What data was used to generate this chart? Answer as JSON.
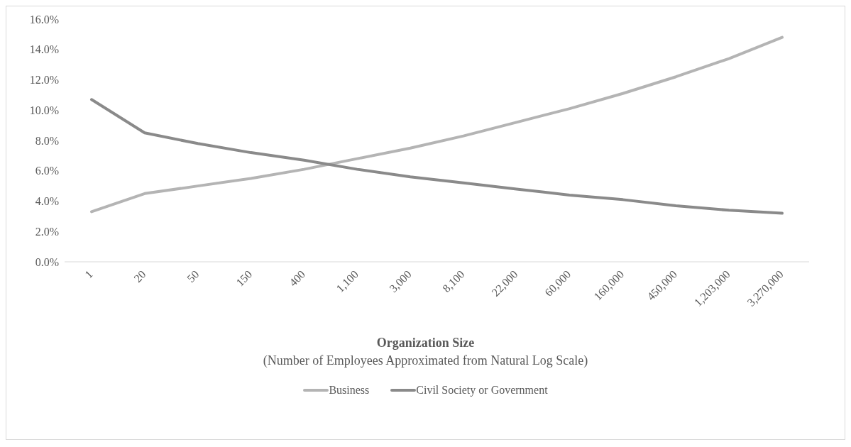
{
  "chart_data": {
    "type": "line",
    "xlabel": "Organization Size",
    "annotations": [
      "(Number of Employees Approximated from Natural Log Scale)"
    ],
    "categories": [
      "1",
      "20",
      "50",
      "150",
      "400",
      "1,100",
      "3,000",
      "8,100",
      "22,000",
      "60,000",
      "160,000",
      "450,000",
      "1,203,000",
      "3,270,000"
    ],
    "series": [
      {
        "name": "Business",
        "color": "#b4b4b4",
        "values": [
          3.3,
          4.5,
          5.0,
          5.5,
          6.1,
          6.8,
          7.5,
          8.3,
          9.2,
          10.1,
          11.1,
          12.2,
          13.4,
          14.8
        ]
      },
      {
        "name": "Civil Society or Government",
        "color": "#8a8a8a",
        "values": [
          10.7,
          8.5,
          7.8,
          7.2,
          6.7,
          6.1,
          5.6,
          5.2,
          4.8,
          4.4,
          4.1,
          3.7,
          3.4,
          3.2
        ]
      }
    ],
    "ylim": [
      0,
      16
    ],
    "yticks": [
      {
        "value": 0,
        "label": "0.0%"
      },
      {
        "value": 2,
        "label": "2.0%"
      },
      {
        "value": 4,
        "label": "4.0%"
      },
      {
        "value": 6,
        "label": "6.0%"
      },
      {
        "value": 8,
        "label": "8.0%"
      },
      {
        "value": 10,
        "label": "10.0%"
      },
      {
        "value": 12,
        "label": "12.0%"
      },
      {
        "value": 14,
        "label": "14.0%"
      },
      {
        "value": 16,
        "label": "16.0%"
      }
    ],
    "legend": "bottom",
    "marker": "none",
    "line_style": "solid"
  }
}
